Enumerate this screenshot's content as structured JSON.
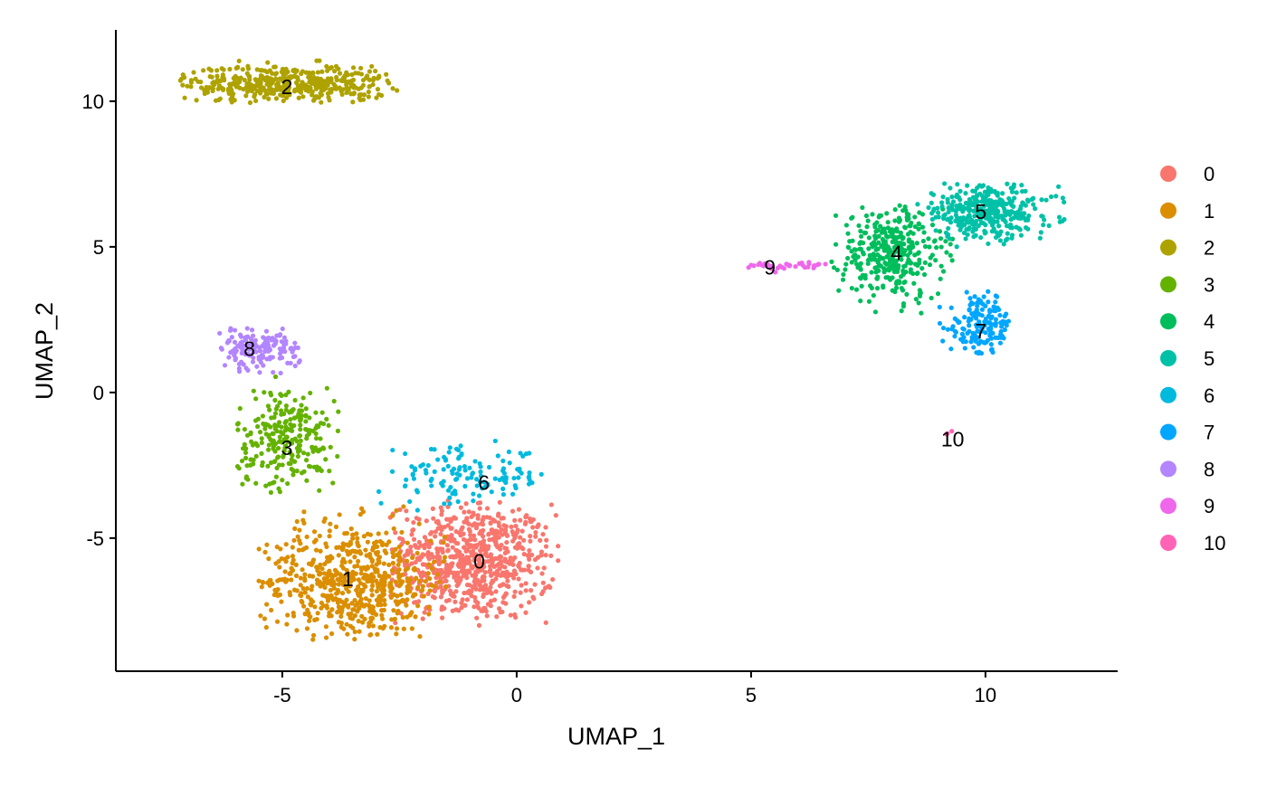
{
  "chart_data": {
    "type": "scatter",
    "title": "",
    "xlabel": "UMAP_1",
    "ylabel": "UMAP_2",
    "xlim": [
      -8.55,
      12.82
    ],
    "ylim": [
      -9.57,
      12.45
    ],
    "xticks": [
      -5,
      0,
      5,
      10
    ],
    "yticks": [
      -5,
      0,
      5,
      10
    ],
    "xtick_labels": [
      "-5",
      "0",
      "5",
      "10"
    ],
    "ytick_labels": [
      "-5",
      "0",
      "5",
      "10"
    ],
    "grid": false,
    "legend_position": "right",
    "note": "Point clouds summarized per cluster: center, std dev and clipping range in UMAP units, with approximate cell count",
    "clusters": [
      {
        "id": "0",
        "color": "#F8766D",
        "label_pos": [
          -0.8,
          -5.8
        ],
        "center": [
          -1.0,
          -5.8
        ],
        "sd": [
          0.9,
          1.0
        ],
        "xr": [
          -2.7,
          0.9
        ],
        "yr": [
          -8.0,
          -3.7
        ],
        "n": 700
      },
      {
        "id": "1",
        "color": "#DB8E00",
        "label_pos": [
          -3.6,
          -6.4
        ],
        "center": [
          -3.5,
          -6.5
        ],
        "sd": [
          1.0,
          1.0
        ],
        "xr": [
          -5.5,
          -1.5
        ],
        "yr": [
          -8.5,
          -3.7
        ],
        "n": 600
      },
      {
        "id": "2",
        "color": "#AEA200",
        "label_pos": [
          -4.9,
          10.5
        ],
        "center": [
          -4.9,
          10.6
        ],
        "sd": [
          1.1,
          0.33
        ],
        "xr": [
          -7.2,
          -2.5
        ],
        "yr": [
          9.9,
          11.4
        ],
        "n": 450
      },
      {
        "id": "3",
        "color": "#64B200",
        "label_pos": [
          -4.9,
          -1.9
        ],
        "center": [
          -4.9,
          -1.6
        ],
        "sd": [
          0.55,
          0.9
        ],
        "xr": [
          -6.0,
          -3.7
        ],
        "yr": [
          -3.6,
          0.6
        ],
        "n": 250
      },
      {
        "id": "4",
        "color": "#00BD5C",
        "label_pos": [
          8.1,
          4.8
        ],
        "center": [
          8.0,
          4.8
        ],
        "sd": [
          0.55,
          0.8
        ],
        "xr": [
          6.7,
          9.3
        ],
        "yr": [
          2.6,
          6.5
        ],
        "n": 350
      },
      {
        "id": "5",
        "color": "#00C1A7",
        "label_pos": [
          9.9,
          6.2
        ],
        "center": [
          10.0,
          6.2
        ],
        "sd": [
          0.75,
          0.45
        ],
        "xr": [
          8.5,
          11.7
        ],
        "yr": [
          5.0,
          7.2
        ],
        "n": 350
      },
      {
        "id": "6",
        "color": "#00BADE",
        "label_pos": [
          -0.7,
          -3.1
        ],
        "center": [
          -1.1,
          -2.9
        ],
        "sd": [
          0.9,
          0.5
        ],
        "xr": [
          -3.0,
          0.6
        ],
        "yr": [
          -4.2,
          -1.5
        ],
        "n": 130
      },
      {
        "id": "7",
        "color": "#00A6FF",
        "label_pos": [
          9.9,
          2.1
        ],
        "center": [
          9.9,
          2.3
        ],
        "sd": [
          0.35,
          0.55
        ],
        "xr": [
          9.0,
          10.6
        ],
        "yr": [
          1.2,
          3.5
        ],
        "n": 150
      },
      {
        "id": "8",
        "color": "#B385FF",
        "label_pos": [
          -5.7,
          1.5
        ],
        "center": [
          -5.5,
          1.5
        ],
        "sd": [
          0.45,
          0.35
        ],
        "xr": [
          -6.4,
          -4.5
        ],
        "yr": [
          0.6,
          2.2
        ],
        "n": 150
      },
      {
        "id": "9",
        "color": "#EF67EB",
        "label_pos": [
          5.4,
          4.3
        ],
        "center": [
          5.7,
          4.35
        ],
        "sd": [
          0.5,
          0.07
        ],
        "xr": [
          4.9,
          6.6
        ],
        "yr": [
          4.05,
          4.6
        ],
        "n": 40
      },
      {
        "id": "10",
        "color": "#FF63B6",
        "label_pos": [
          9.3,
          -1.6
        ],
        "center": [
          9.2,
          -1.45
        ],
        "sd": [
          0.05,
          0.1
        ],
        "xr": [
          9.1,
          9.3
        ],
        "yr": [
          -1.6,
          -1.3
        ],
        "n": 3
      }
    ]
  }
}
